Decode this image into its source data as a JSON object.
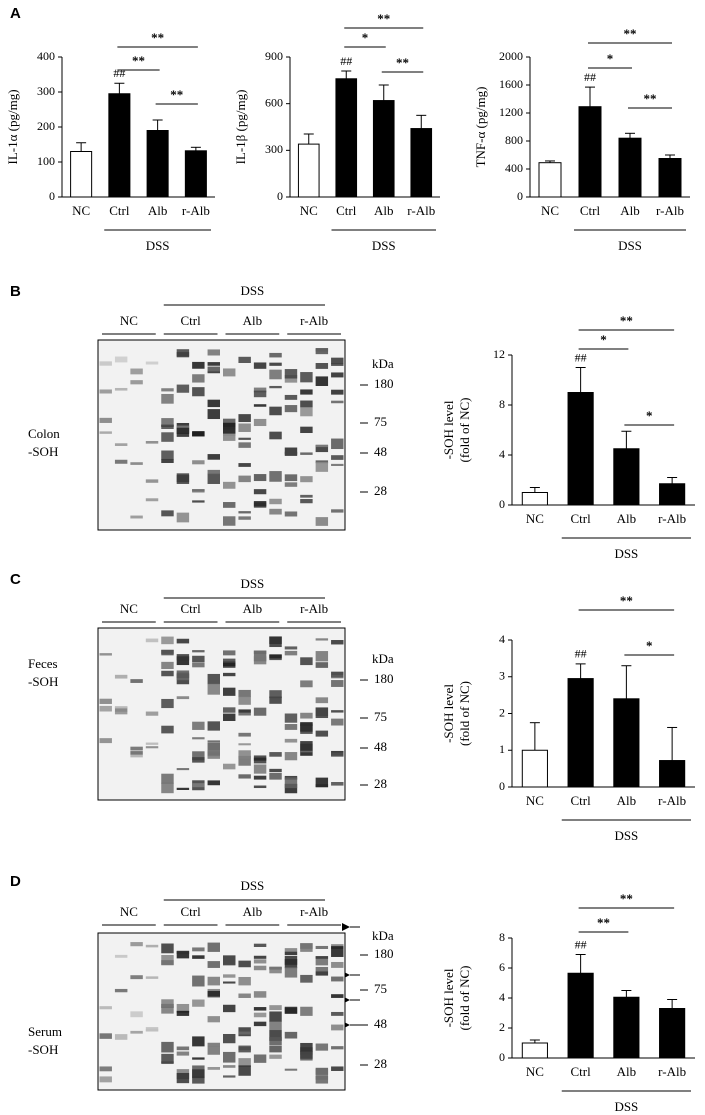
{
  "panels": [
    "A",
    "B",
    "C",
    "D"
  ],
  "chart_data": [
    {
      "type": "bar",
      "ylabel": "IL-1α (pg/mg)",
      "categories": [
        "NC",
        "Ctrl",
        "Alb",
        "r-Alb"
      ],
      "values": [
        130,
        295,
        190,
        132
      ],
      "errors": [
        25,
        30,
        30,
        10
      ],
      "colors": [
        "#ffffff",
        "#000000",
        "#000000",
        "#000000"
      ],
      "ylim": [
        0,
        400
      ],
      "yticks": [
        0,
        100,
        200,
        300,
        400
      ],
      "annotations": [
        {
          "text": "##",
          "category": 1
        }
      ],
      "significance": [
        {
          "from": 1,
          "to": 3,
          "label": "**"
        },
        {
          "from": 1,
          "to": 2,
          "label": "**"
        },
        {
          "from": 2,
          "to": 3,
          "label": "**"
        }
      ],
      "group": {
        "label": "DSS",
        "from": 1,
        "to": 3
      }
    },
    {
      "type": "bar",
      "ylabel": "IL-1β (pg/mg)",
      "categories": [
        "NC",
        "Ctrl",
        "Alb",
        "r-Alb"
      ],
      "values": [
        340,
        760,
        620,
        440
      ],
      "errors": [
        65,
        50,
        100,
        85
      ],
      "colors": [
        "#ffffff",
        "#000000",
        "#000000",
        "#000000"
      ],
      "ylim": [
        0,
        900
      ],
      "yticks": [
        0,
        300,
        600,
        900
      ],
      "annotations": [
        {
          "text": "##",
          "category": 1
        }
      ],
      "significance": [
        {
          "from": 1,
          "to": 3,
          "label": "**"
        },
        {
          "from": 1,
          "to": 2,
          "label": "*"
        },
        {
          "from": 2,
          "to": 3,
          "label": "**"
        }
      ],
      "group": {
        "label": "DSS",
        "from": 1,
        "to": 3
      }
    },
    {
      "type": "bar",
      "ylabel": "TNF-α (pg/mg)",
      "categories": [
        "NC",
        "Ctrl",
        "Alb",
        "r-Alb"
      ],
      "values": [
        490,
        1290,
        840,
        550
      ],
      "errors": [
        25,
        280,
        70,
        50
      ],
      "colors": [
        "#ffffff",
        "#000000",
        "#000000",
        "#000000"
      ],
      "ylim": [
        0,
        2000
      ],
      "yticks": [
        0,
        400,
        800,
        1200,
        1600,
        2000
      ],
      "annotations": [
        {
          "text": "##",
          "category": 1
        }
      ],
      "significance": [
        {
          "from": 1,
          "to": 3,
          "label": "**"
        },
        {
          "from": 1,
          "to": 2,
          "label": "*"
        },
        {
          "from": 2,
          "to": 3,
          "label": "**"
        }
      ],
      "group": {
        "label": "DSS",
        "from": 1,
        "to": 3
      }
    },
    {
      "type": "bar",
      "ylabel": [
        "-SOH level",
        "(fold of NC)"
      ],
      "categories": [
        "NC",
        "Ctrl",
        "Alb",
        "r-Alb"
      ],
      "values": [
        1,
        9,
        4.5,
        1.7
      ],
      "errors": [
        0.4,
        2,
        1.4,
        0.5
      ],
      "colors": [
        "#ffffff",
        "#000000",
        "#000000",
        "#000000"
      ],
      "ylim": [
        0,
        12
      ],
      "yticks": [
        0,
        4,
        8,
        12
      ],
      "annotations": [
        {
          "text": "##",
          "category": 1
        }
      ],
      "significance": [
        {
          "from": 1,
          "to": 3,
          "label": "**"
        },
        {
          "from": 1,
          "to": 2,
          "label": "*"
        },
        {
          "from": 2,
          "to": 3,
          "label": "*"
        }
      ],
      "group": {
        "label": "DSS",
        "from": 1,
        "to": 3
      }
    },
    {
      "type": "bar",
      "ylabel": [
        "-SOH level",
        "(fold of NC)"
      ],
      "categories": [
        "NC",
        "Ctrl",
        "Alb",
        "r-Alb"
      ],
      "values": [
        1,
        2.95,
        2.4,
        0.72
      ],
      "errors": [
        0.75,
        0.4,
        0.9,
        0.9
      ],
      "colors": [
        "#ffffff",
        "#000000",
        "#000000",
        "#000000"
      ],
      "ylim": [
        0,
        4
      ],
      "yticks": [
        0,
        1,
        2,
        3,
        4
      ],
      "annotations": [
        {
          "text": "##",
          "category": 1
        }
      ],
      "significance": [
        {
          "from": 1,
          "to": 3,
          "label": "**"
        },
        {
          "from": 2,
          "to": 3,
          "label": "*"
        }
      ],
      "group": {
        "label": "DSS",
        "from": 1,
        "to": 3
      }
    },
    {
      "type": "bar",
      "ylabel": [
        "-SOH level",
        "(fold of NC)"
      ],
      "categories": [
        "NC",
        "Ctrl",
        "Alb",
        "r-Alb"
      ],
      "values": [
        1,
        5.65,
        4.05,
        3.3
      ],
      "errors": [
        0.2,
        1.25,
        0.45,
        0.6
      ],
      "colors": [
        "#ffffff",
        "#000000",
        "#000000",
        "#000000"
      ],
      "ylim": [
        0,
        8
      ],
      "yticks": [
        0,
        2,
        4,
        6,
        8
      ],
      "annotations": [
        {
          "text": "##",
          "category": 1
        }
      ],
      "significance": [
        {
          "from": 1,
          "to": 3,
          "label": "**"
        },
        {
          "from": 1,
          "to": 2,
          "label": "**"
        }
      ],
      "group": {
        "label": "DSS",
        "from": 1,
        "to": 3
      }
    }
  ],
  "blots": [
    {
      "sample": [
        "Colon",
        "-SOH"
      ],
      "group": "DSS",
      "lanes": [
        "NC",
        "Ctrl",
        "Alb",
        "r-Alb"
      ],
      "unit": "kDa",
      "markers": [
        180,
        75,
        48,
        28
      ]
    },
    {
      "sample": [
        "Feces",
        "-SOH"
      ],
      "group": "DSS",
      "lanes": [
        "NC",
        "Ctrl",
        "Alb",
        "r-Alb"
      ],
      "unit": "kDa",
      "markers": [
        180,
        75,
        48,
        28
      ]
    },
    {
      "sample": [
        "Serum",
        "-SOH"
      ],
      "group": "DSS",
      "lanes": [
        "NC",
        "Ctrl",
        "Alb",
        "r-Alb"
      ],
      "unit": "kDa",
      "markers": [
        180,
        75,
        48,
        28
      ]
    }
  ]
}
